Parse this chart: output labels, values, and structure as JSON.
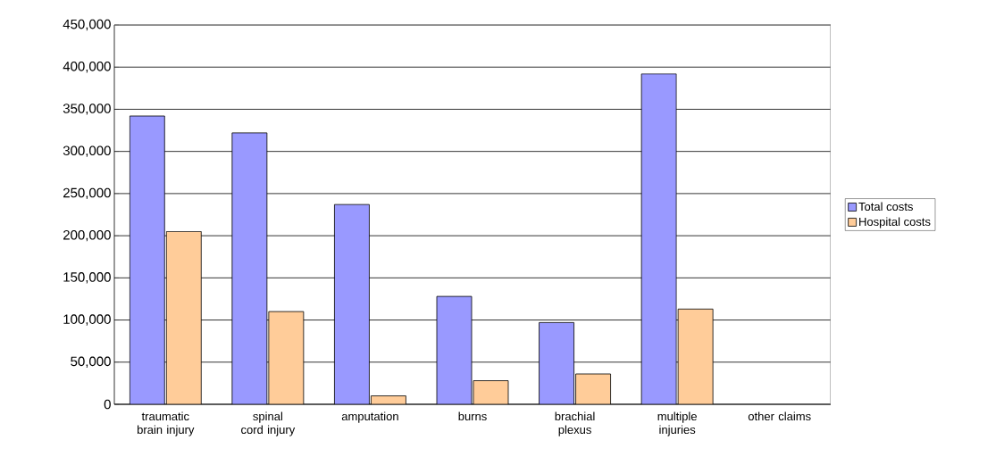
{
  "chart_data": {
    "type": "bar",
    "categories": [
      "traumatic brain injury",
      "spinal cord injury",
      "amputation",
      "burns",
      "brachial plexus",
      "multiple injuries",
      "other claims"
    ],
    "series": [
      {
        "name": "Total costs",
        "color": "#9999ff",
        "values": [
          342000,
          322000,
          237000,
          128000,
          97000,
          392000,
          null
        ]
      },
      {
        "name": "Hospital costs",
        "color": "#ffcc99",
        "values": [
          205000,
          110000,
          10000,
          28000,
          36000,
          113000,
          null
        ]
      }
    ],
    "ylim": [
      0,
      450000
    ],
    "yticks": [
      {
        "value": 0,
        "label": "0"
      },
      {
        "value": 50000,
        "label": "50,000"
      },
      {
        "value": 100000,
        "label": "100,000"
      },
      {
        "value": 150000,
        "label": "150,000"
      },
      {
        "value": 200000,
        "label": "200,000"
      },
      {
        "value": 250000,
        "label": "250,000"
      },
      {
        "value": 300000,
        "label": "300,000"
      },
      {
        "value": 350000,
        "label": "350,000"
      },
      {
        "value": 400000,
        "label": "400,000"
      },
      {
        "value": 450000,
        "label": "450,000"
      }
    ],
    "grid": "y",
    "legend": "right"
  }
}
